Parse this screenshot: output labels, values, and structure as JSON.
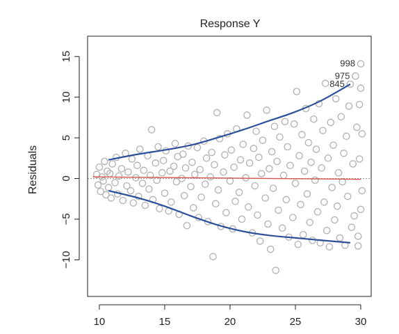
{
  "chart_data": {
    "type": "scatter",
    "title": "Response Y",
    "xlabel": "",
    "ylabel": "Residuals",
    "xlim": [
      9.1,
      30.8
    ],
    "ylim": [
      -14.5,
      17.5
    ],
    "x_ticks": [
      10,
      15,
      20,
      25,
      30
    ],
    "x_tick_labels": [
      "10",
      "15",
      "20",
      "25",
      "30"
    ],
    "y_ticks": [
      -10,
      -5,
      0,
      5,
      10,
      15
    ],
    "y_tick_labels": [
      "−10",
      "−5",
      "0",
      "5",
      "10",
      "15"
    ],
    "grid": false,
    "zero_line": 0,
    "colors": {
      "points": "#b0b0b0",
      "envelope": "#2d4f9a",
      "fit": "#d9534f",
      "zero_line": "#9a9a9a"
    },
    "annotations": [
      {
        "text": "998",
        "x": 30.0,
        "y": 14.1
      },
      {
        "text": "975",
        "x": 29.6,
        "y": 12.6
      },
      {
        "text": "845",
        "x": 29.2,
        "y": 11.6
      }
    ],
    "labeled_points": [
      {
        "x": 30.0,
        "y": 14.1
      },
      {
        "x": 29.6,
        "y": 12.6
      },
      {
        "x": 29.2,
        "y": 11.6
      }
    ],
    "upper_envelope": [
      {
        "x": 10.7,
        "y": 2.3
      },
      {
        "x": 13.0,
        "y": 3.0
      },
      {
        "x": 15.0,
        "y": 3.5
      },
      {
        "x": 17.0,
        "y": 4.1
      },
      {
        "x": 19.0,
        "y": 5.0
      },
      {
        "x": 21.0,
        "y": 6.0
      },
      {
        "x": 23.0,
        "y": 7.1
      },
      {
        "x": 25.0,
        "y": 8.2
      },
      {
        "x": 27.0,
        "y": 9.6
      },
      {
        "x": 29.2,
        "y": 11.6
      }
    ],
    "lower_envelope": [
      {
        "x": 10.7,
        "y": -1.5
      },
      {
        "x": 13.0,
        "y": -2.4
      },
      {
        "x": 15.0,
        "y": -3.4
      },
      {
        "x": 17.0,
        "y": -4.6
      },
      {
        "x": 19.0,
        "y": -5.7
      },
      {
        "x": 21.0,
        "y": -6.5
      },
      {
        "x": 23.0,
        "y": -7.0
      },
      {
        "x": 25.0,
        "y": -7.3
      },
      {
        "x": 27.0,
        "y": -7.6
      },
      {
        "x": 29.2,
        "y": -7.9
      }
    ],
    "fit_line": [
      {
        "x": 9.5,
        "y": 0.2
      },
      {
        "x": 30.0,
        "y": -0.1
      }
    ],
    "points": [
      {
        "x": 9.8,
        "y": 0.5
      },
      {
        "x": 9.9,
        "y": -0.8
      },
      {
        "x": 10.0,
        "y": 1.4
      },
      {
        "x": 10.1,
        "y": -1.6
      },
      {
        "x": 10.2,
        "y": 0.2
      },
      {
        "x": 10.3,
        "y": -0.3
      },
      {
        "x": 10.4,
        "y": 2.1
      },
      {
        "x": 10.5,
        "y": -2.0
      },
      {
        "x": 10.6,
        "y": 0.9
      },
      {
        "x": 10.7,
        "y": -1.1
      },
      {
        "x": 10.8,
        "y": 0.6
      },
      {
        "x": 10.9,
        "y": -2.4
      },
      {
        "x": 11.0,
        "y": 1.8
      },
      {
        "x": 11.2,
        "y": -0.5
      },
      {
        "x": 11.3,
        "y": 2.6
      },
      {
        "x": 11.4,
        "y": -1.9
      },
      {
        "x": 11.5,
        "y": 0.3
      },
      {
        "x": 11.7,
        "y": 1.2
      },
      {
        "x": 11.8,
        "y": -2.7
      },
      {
        "x": 12.0,
        "y": 3.1
      },
      {
        "x": 12.1,
        "y": -0.9
      },
      {
        "x": 12.2,
        "y": 0.8
      },
      {
        "x": 12.4,
        "y": -1.5
      },
      {
        "x": 12.5,
        "y": 2.4
      },
      {
        "x": 12.6,
        "y": -3.0
      },
      {
        "x": 12.8,
        "y": 0.1
      },
      {
        "x": 12.9,
        "y": 1.6
      },
      {
        "x": 13.0,
        "y": -2.2
      },
      {
        "x": 13.1,
        "y": 3.6
      },
      {
        "x": 13.3,
        "y": -0.6
      },
      {
        "x": 13.4,
        "y": 1.0
      },
      {
        "x": 13.5,
        "y": -3.3
      },
      {
        "x": 13.7,
        "y": 2.8
      },
      {
        "x": 13.8,
        "y": -1.3
      },
      {
        "x": 13.9,
        "y": 0.4
      },
      {
        "x": 14.0,
        "y": 6.0
      },
      {
        "x": 14.1,
        "y": -2.6
      },
      {
        "x": 14.3,
        "y": 1.9
      },
      {
        "x": 14.4,
        "y": -0.2
      },
      {
        "x": 14.5,
        "y": 3.9
      },
      {
        "x": 14.6,
        "y": -3.7
      },
      {
        "x": 14.8,
        "y": 0.7
      },
      {
        "x": 14.9,
        "y": 2.2
      },
      {
        "x": 15.0,
        "y": -1.8
      },
      {
        "x": 15.1,
        "y": 3.4
      },
      {
        "x": 15.3,
        "y": -4.0
      },
      {
        "x": 15.4,
        "y": 0.9
      },
      {
        "x": 15.5,
        "y": -2.9
      },
      {
        "x": 15.7,
        "y": 1.5
      },
      {
        "x": 15.8,
        "y": 4.3
      },
      {
        "x": 15.9,
        "y": -0.4
      },
      {
        "x": 16.0,
        "y": 2.7
      },
      {
        "x": 16.1,
        "y": -4.4
      },
      {
        "x": 16.3,
        "y": 0.0
      },
      {
        "x": 16.4,
        "y": 3.0
      },
      {
        "x": 16.5,
        "y": -2.1
      },
      {
        "x": 16.6,
        "y": 1.3
      },
      {
        "x": 16.7,
        "y": -5.8
      },
      {
        "x": 16.8,
        "y": 4.0
      },
      {
        "x": 17.0,
        "y": -1.0
      },
      {
        "x": 17.1,
        "y": 2.0
      },
      {
        "x": 17.2,
        "y": -3.6
      },
      {
        "x": 17.3,
        "y": 0.5
      },
      {
        "x": 17.5,
        "y": 3.8
      },
      {
        "x": 17.6,
        "y": -4.8
      },
      {
        "x": 17.7,
        "y": 1.1
      },
      {
        "x": 17.8,
        "y": -2.3
      },
      {
        "x": 18.0,
        "y": 4.6
      },
      {
        "x": 18.1,
        "y": -0.7
      },
      {
        "x": 18.2,
        "y": 2.5
      },
      {
        "x": 18.3,
        "y": -5.3
      },
      {
        "x": 18.5,
        "y": 0.2
      },
      {
        "x": 18.6,
        "y": 3.2
      },
      {
        "x": 18.7,
        "y": -9.6
      },
      {
        "x": 18.8,
        "y": 1.7
      },
      {
        "x": 18.9,
        "y": -3.1
      },
      {
        "x": 19.0,
        "y": 8.1
      },
      {
        "x": 19.1,
        "y": -1.4
      },
      {
        "x": 19.2,
        "y": 4.9
      },
      {
        "x": 19.3,
        "y": -5.9
      },
      {
        "x": 19.5,
        "y": 0.8
      },
      {
        "x": 19.6,
        "y": 2.9
      },
      {
        "x": 19.7,
        "y": -4.2
      },
      {
        "x": 19.8,
        "y": 5.5
      },
      {
        "x": 20.0,
        "y": -0.3
      },
      {
        "x": 20.1,
        "y": 3.5
      },
      {
        "x": 20.2,
        "y": -6.2
      },
      {
        "x": 20.3,
        "y": 1.4
      },
      {
        "x": 20.4,
        "y": -2.8
      },
      {
        "x": 20.5,
        "y": 6.1
      },
      {
        "x": 20.7,
        "y": -1.7
      },
      {
        "x": 20.8,
        "y": 2.3
      },
      {
        "x": 20.9,
        "y": -5.0
      },
      {
        "x": 21.0,
        "y": 4.2
      },
      {
        "x": 21.2,
        "y": 0.1
      },
      {
        "x": 21.3,
        "y": 7.8
      },
      {
        "x": 21.4,
        "y": -3.5
      },
      {
        "x": 21.5,
        "y": 1.9
      },
      {
        "x": 21.7,
        "y": -6.7
      },
      {
        "x": 21.8,
        "y": 3.7
      },
      {
        "x": 21.9,
        "y": -0.9
      },
      {
        "x": 22.0,
        "y": 5.8
      },
      {
        "x": 22.1,
        "y": -4.5
      },
      {
        "x": 22.2,
        "y": 2.6
      },
      {
        "x": 22.3,
        "y": -7.7
      },
      {
        "x": 22.4,
        "y": 0.6
      },
      {
        "x": 22.5,
        "y": 4.7
      },
      {
        "x": 22.7,
        "y": -2.4
      },
      {
        "x": 22.8,
        "y": 8.4
      },
      {
        "x": 22.9,
        "y": -5.6
      },
      {
        "x": 23.0,
        "y": 1.2
      },
      {
        "x": 23.1,
        "y": -8.7
      },
      {
        "x": 23.2,
        "y": 3.3
      },
      {
        "x": 23.3,
        "y": -1.2
      },
      {
        "x": 23.4,
        "y": 6.4
      },
      {
        "x": 23.5,
        "y": -11.3
      },
      {
        "x": 23.6,
        "y": 2.1
      },
      {
        "x": 23.7,
        "y": -3.9
      },
      {
        "x": 23.8,
        "y": 5.1
      },
      {
        "x": 24.0,
        "y": -6.1
      },
      {
        "x": 24.1,
        "y": 0.4
      },
      {
        "x": 24.2,
        "y": 7.0
      },
      {
        "x": 24.3,
        "y": -2.6
      },
      {
        "x": 24.4,
        "y": 3.9
      },
      {
        "x": 24.5,
        "y": -7.2
      },
      {
        "x": 24.6,
        "y": 1.6
      },
      {
        "x": 24.8,
        "y": -4.8
      },
      {
        "x": 24.9,
        "y": 6.7
      },
      {
        "x": 25.0,
        "y": -0.6
      },
      {
        "x": 25.1,
        "y": 10.7
      },
      {
        "x": 25.2,
        "y": -8.1
      },
      {
        "x": 25.3,
        "y": 2.8
      },
      {
        "x": 25.4,
        "y": -3.2
      },
      {
        "x": 25.5,
        "y": 5.4
      },
      {
        "x": 25.6,
        "y": -6.9
      },
      {
        "x": 25.7,
        "y": 0.9
      },
      {
        "x": 25.8,
        "y": 8.6
      },
      {
        "x": 25.9,
        "y": -1.9
      },
      {
        "x": 26.0,
        "y": 4.4
      },
      {
        "x": 26.1,
        "y": -5.4
      },
      {
        "x": 26.2,
        "y": 2.0
      },
      {
        "x": 26.3,
        "y": -7.6
      },
      {
        "x": 26.4,
        "y": 7.3
      },
      {
        "x": 26.5,
        "y": -0.2
      },
      {
        "x": 26.6,
        "y": 3.6
      },
      {
        "x": 26.7,
        "y": -4.1
      },
      {
        "x": 26.8,
        "y": 9.2
      },
      {
        "x": 26.9,
        "y": -7.9
      },
      {
        "x": 27.0,
        "y": 1.3
      },
      {
        "x": 27.1,
        "y": 5.9
      },
      {
        "x": 27.2,
        "y": -2.9
      },
      {
        "x": 27.3,
        "y": 11.7
      },
      {
        "x": 27.4,
        "y": -6.4
      },
      {
        "x": 27.5,
        "y": 2.5
      },
      {
        "x": 27.6,
        "y": -8.4
      },
      {
        "x": 27.7,
        "y": 6.9
      },
      {
        "x": 27.8,
        "y": -1.1
      },
      {
        "x": 27.9,
        "y": 4.1
      },
      {
        "x": 28.0,
        "y": -5.1
      },
      {
        "x": 28.1,
        "y": 9.8
      },
      {
        "x": 28.2,
        "y": -3.4
      },
      {
        "x": 28.3,
        "y": 0.7
      },
      {
        "x": 28.4,
        "y": -7.3
      },
      {
        "x": 28.5,
        "y": 7.6
      },
      {
        "x": 28.6,
        "y": -0.4
      },
      {
        "x": 28.7,
        "y": 3.1
      },
      {
        "x": 28.8,
        "y": -8.2
      },
      {
        "x": 28.9,
        "y": 5.2
      },
      {
        "x": 29.0,
        "y": -2.2
      },
      {
        "x": 29.1,
        "y": 8.9
      },
      {
        "x": 29.2,
        "y": 11.6
      },
      {
        "x": 29.3,
        "y": -6.0
      },
      {
        "x": 29.4,
        "y": 1.8
      },
      {
        "x": 29.5,
        "y": -4.6
      },
      {
        "x": 29.6,
        "y": 12.6
      },
      {
        "x": 29.7,
        "y": 6.3
      },
      {
        "x": 29.8,
        "y": -7.1
      },
      {
        "x": 29.9,
        "y": 2.4
      },
      {
        "x": 30.0,
        "y": 14.1
      },
      {
        "x": 30.0,
        "y": -3.8
      },
      {
        "x": 30.0,
        "y": 11.1
      },
      {
        "x": 30.1,
        "y": 5.5
      },
      {
        "x": 30.1,
        "y": -1.5
      },
      {
        "x": 29.9,
        "y": 9.1
      },
      {
        "x": 29.8,
        "y": -8.3
      }
    ]
  }
}
